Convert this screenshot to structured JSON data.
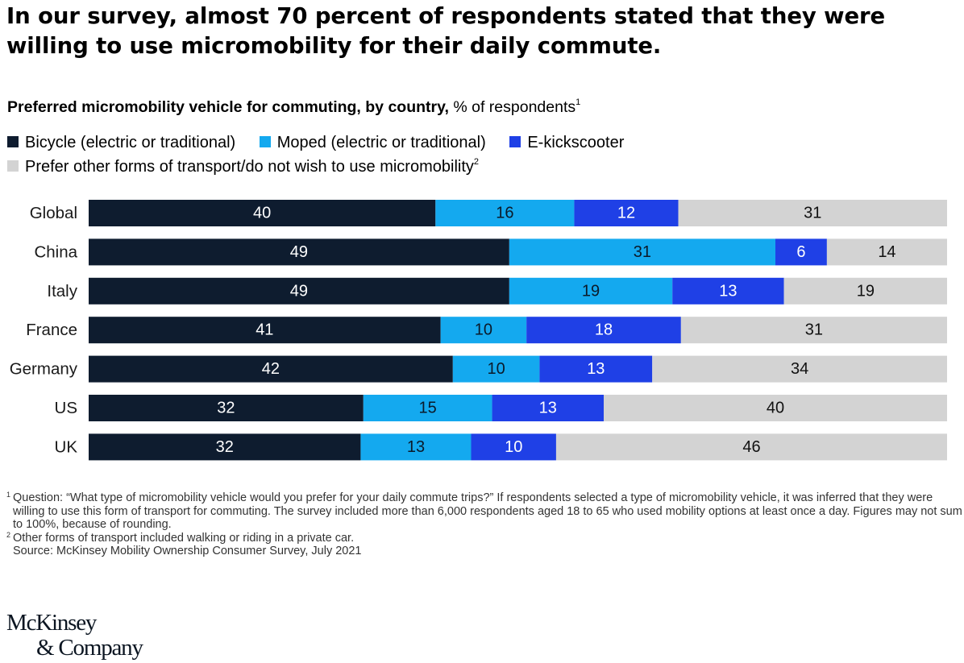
{
  "headline": "In our survey, almost 70 percent of respondents stated that they were willing to use micromobility for their daily commute.",
  "subtitle": {
    "bold": "Preferred micromobility vehicle for commuting, by country,",
    "rest": " % of respondents",
    "sup": "1"
  },
  "legend": [
    {
      "label": "Bicycle (electric or traditional)",
      "color": "#0e1c2f"
    },
    {
      "label": "Moped (electric or traditional)",
      "color": "#14a9ef"
    },
    {
      "label": "E-kickscooter",
      "color": "#1f40e6"
    },
    {
      "label": "Prefer other forms of transport/do not wish to use micromobility",
      "color": "#d3d3d3",
      "sup": "2"
    }
  ],
  "chart_data": {
    "type": "bar",
    "orientation": "horizontal",
    "stacked": true,
    "categories": [
      "Global",
      "China",
      "Italy",
      "France",
      "Germany",
      "US",
      "UK"
    ],
    "series": [
      {
        "name": "Bicycle (electric or traditional)",
        "color": "#0e1c2f",
        "label_color": "#ffffff",
        "values": [
          40,
          49,
          49,
          41,
          42,
          32,
          32
        ]
      },
      {
        "name": "Moped (electric or traditional)",
        "color": "#14a9ef",
        "label_color": "#0b1a2a",
        "values": [
          16,
          31,
          19,
          10,
          10,
          15,
          13
        ]
      },
      {
        "name": "E-kickscooter",
        "color": "#1f40e6",
        "label_color": "#ffffff",
        "values": [
          12,
          6,
          13,
          18,
          13,
          13,
          10
        ]
      },
      {
        "name": "Prefer other forms of transport/do not wish to use micromobility",
        "color": "#d3d3d3",
        "label_color": "#111111",
        "values": [
          31,
          14,
          19,
          31,
          34,
          40,
          46
        ]
      }
    ]
  },
  "footnotes": [
    {
      "sup": "1",
      "text": "Question: “What type of micromobility vehicle would you prefer for your daily commute trips?” If respondents selected a type of micromobility vehicle, it was inferred that they were willing to use this form of transport for commuting. The survey included more than 6,000 respondents aged 18 to 65 who used mobility options at least once a day. Figures may not sum to 100%, because of rounding."
    },
    {
      "sup": "2",
      "text": "Other forms of transport included walking or riding in a private car."
    }
  ],
  "source": "Source: McKinsey Mobility Ownership Consumer Survey, July 2021",
  "logo": {
    "line1": "McKinsey",
    "line2": "& Company"
  }
}
